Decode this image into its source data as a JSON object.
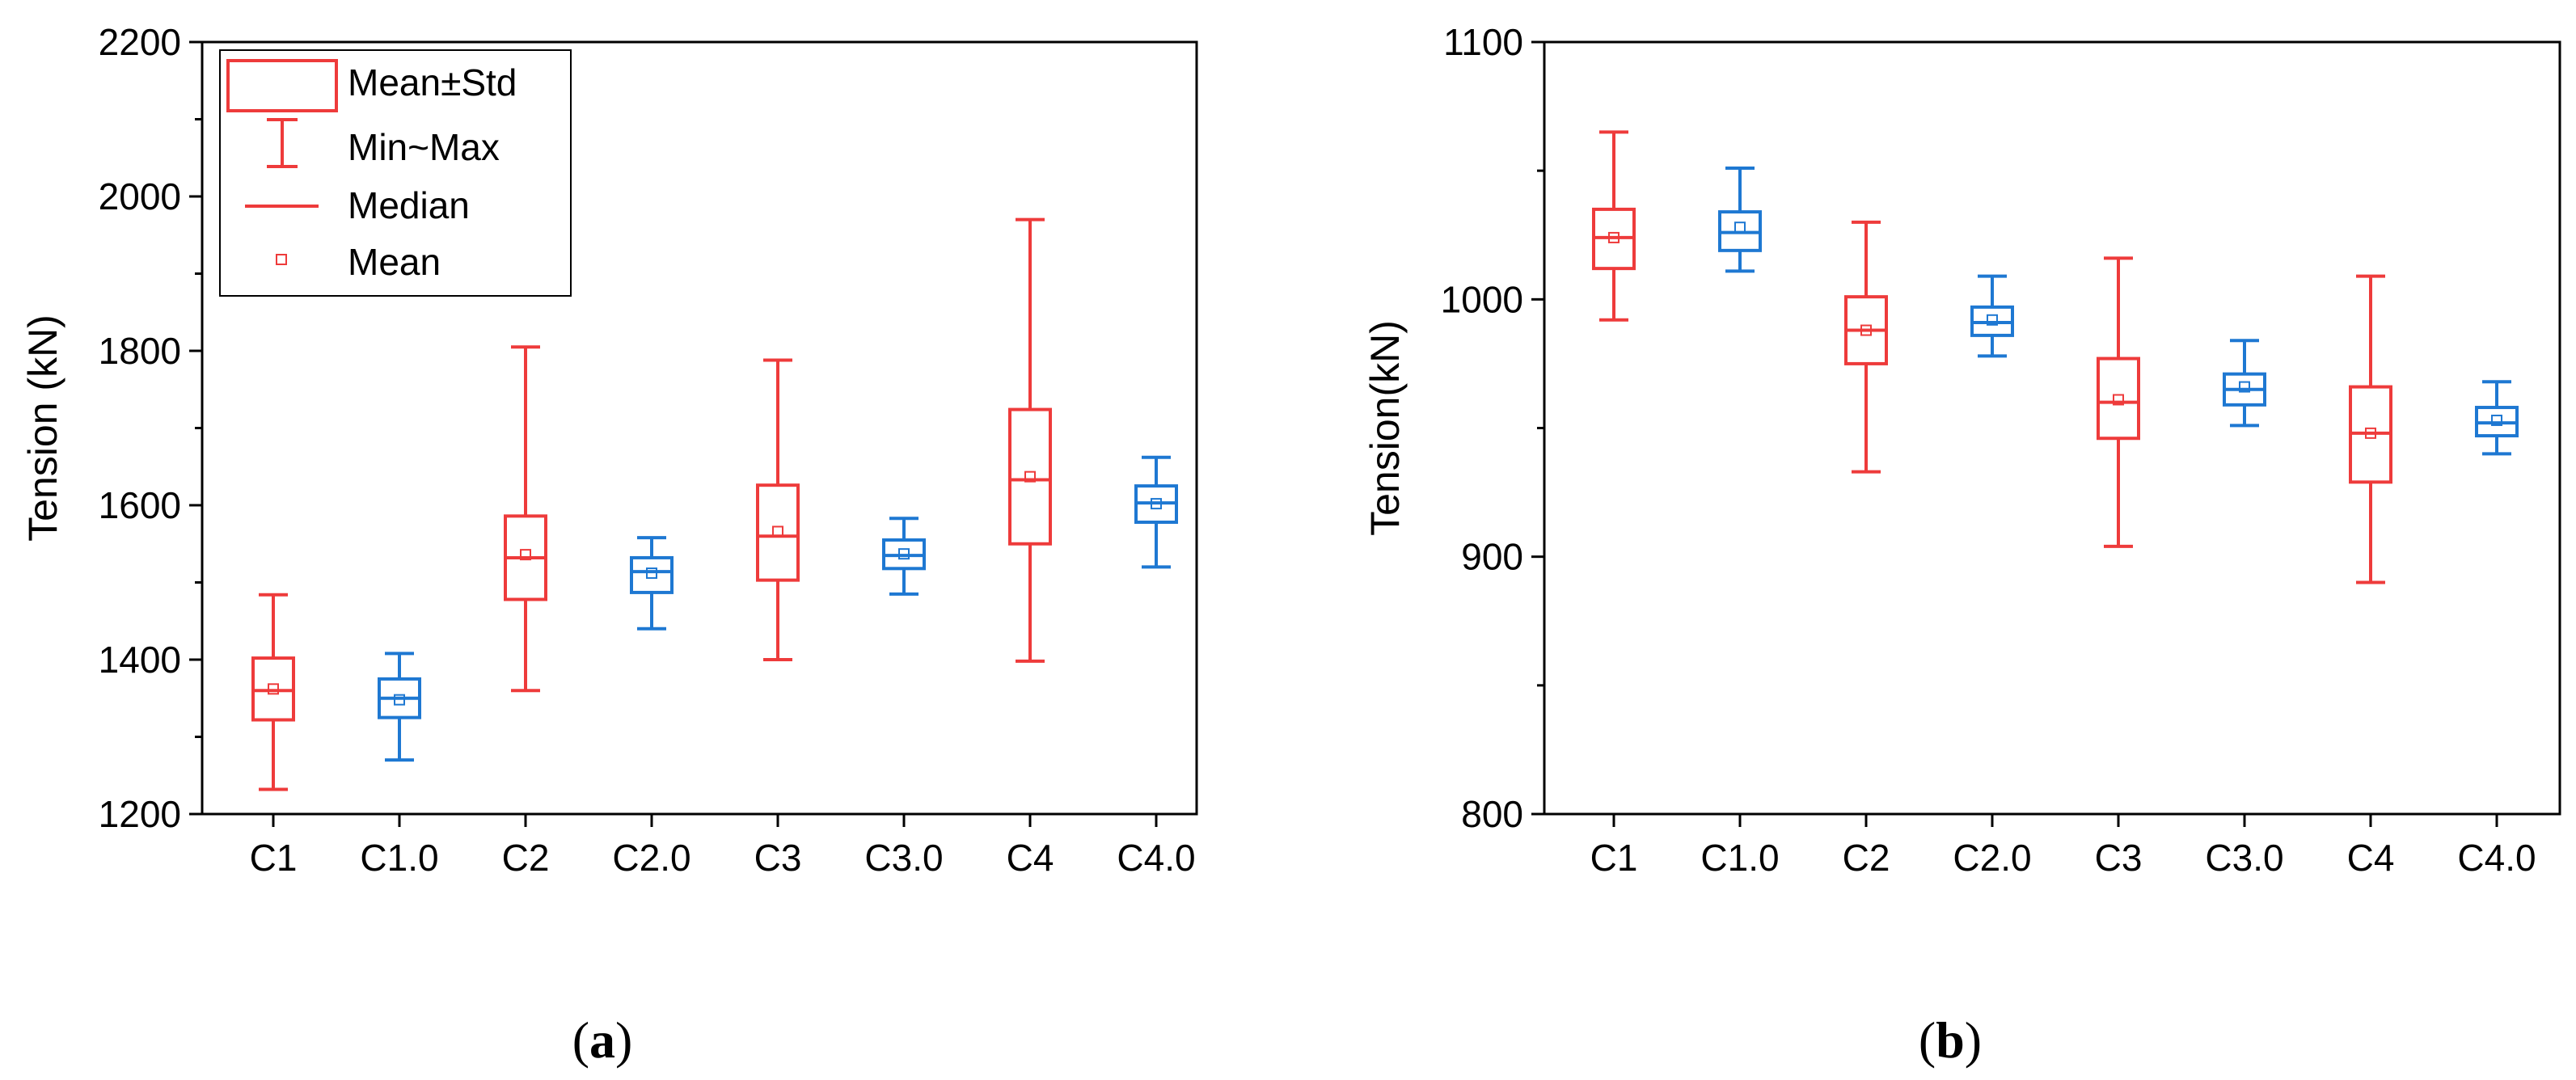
{
  "chart_data": [
    {
      "type": "box",
      "panel_label": "a",
      "xlabel": "",
      "ylabel": "Tension (kN)",
      "ylim": [
        1200,
        2200
      ],
      "yticks": [
        1200,
        1400,
        1600,
        1800,
        2000,
        2200
      ],
      "categories": [
        "C1",
        "C1.0",
        "C2",
        "C2.0",
        "C3",
        "C3.0",
        "C4",
        "C4.0"
      ],
      "series_colors": [
        "#ee3b3b",
        "#1e78d2",
        "#ee3b3b",
        "#1e78d2",
        "#ee3b3b",
        "#1e78d2",
        "#ee3b3b",
        "#1e78d2"
      ],
      "boxes": [
        {
          "min": 1232,
          "q_low": 1322,
          "median": 1360,
          "mean": 1362,
          "q_high": 1402,
          "max": 1484
        },
        {
          "min": 1270,
          "q_low": 1325,
          "median": 1350,
          "mean": 1348,
          "q_high": 1375,
          "max": 1408
        },
        {
          "min": 1360,
          "q_low": 1478,
          "median": 1532,
          "mean": 1536,
          "q_high": 1586,
          "max": 1805
        },
        {
          "min": 1440,
          "q_low": 1487,
          "median": 1514,
          "mean": 1512,
          "q_high": 1532,
          "max": 1558
        },
        {
          "min": 1400,
          "q_low": 1503,
          "median": 1560,
          "mean": 1566,
          "q_high": 1626,
          "max": 1788
        },
        {
          "min": 1485,
          "q_low": 1518,
          "median": 1535,
          "mean": 1537,
          "q_high": 1555,
          "max": 1583
        },
        {
          "min": 1398,
          "q_low": 1550,
          "median": 1633,
          "mean": 1637,
          "q_high": 1724,
          "max": 1970
        },
        {
          "min": 1520,
          "q_low": 1578,
          "median": 1603,
          "mean": 1602,
          "q_high": 1625,
          "max": 1662
        }
      ],
      "legend": {
        "placement": "top-left",
        "entries": [
          "Mean±Std",
          "Min~Max",
          "Median",
          "Mean"
        ]
      }
    },
    {
      "type": "box",
      "panel_label": "b",
      "xlabel": "",
      "ylabel": "Tension(kN)",
      "ylim": [
        800,
        1100
      ],
      "yticks": [
        800,
        900,
        1000,
        1100
      ],
      "categories": [
        "C1",
        "C1.0",
        "C2",
        "C2.0",
        "C3",
        "C3.0",
        "C4",
        "C4.0"
      ],
      "series_colors": [
        "#ee3b3b",
        "#1e78d2",
        "#ee3b3b",
        "#1e78d2",
        "#ee3b3b",
        "#1e78d2",
        "#ee3b3b",
        "#1e78d2"
      ],
      "boxes": [
        {
          "min": 992,
          "q_low": 1012,
          "median": 1024,
          "mean": 1024,
          "q_high": 1035,
          "max": 1065
        },
        {
          "min": 1011,
          "q_low": 1019,
          "median": 1026,
          "mean": 1028,
          "q_high": 1034,
          "max": 1051
        },
        {
          "min": 933,
          "q_low": 975,
          "median": 988,
          "mean": 988,
          "q_high": 1001,
          "max": 1030
        },
        {
          "min": 978,
          "q_low": 986,
          "median": 991,
          "mean": 992,
          "q_high": 997,
          "max": 1009
        },
        {
          "min": 904,
          "q_low": 946,
          "median": 960,
          "mean": 961,
          "q_high": 977,
          "max": 1016
        },
        {
          "min": 951,
          "q_low": 959,
          "median": 965,
          "mean": 966,
          "q_high": 971,
          "max": 984
        },
        {
          "min": 890,
          "q_low": 929,
          "median": 948,
          "mean": 948,
          "q_high": 966,
          "max": 1009
        },
        {
          "min": 940,
          "q_low": 947,
          "median": 952,
          "mean": 953,
          "q_high": 958,
          "max": 968
        }
      ]
    }
  ]
}
